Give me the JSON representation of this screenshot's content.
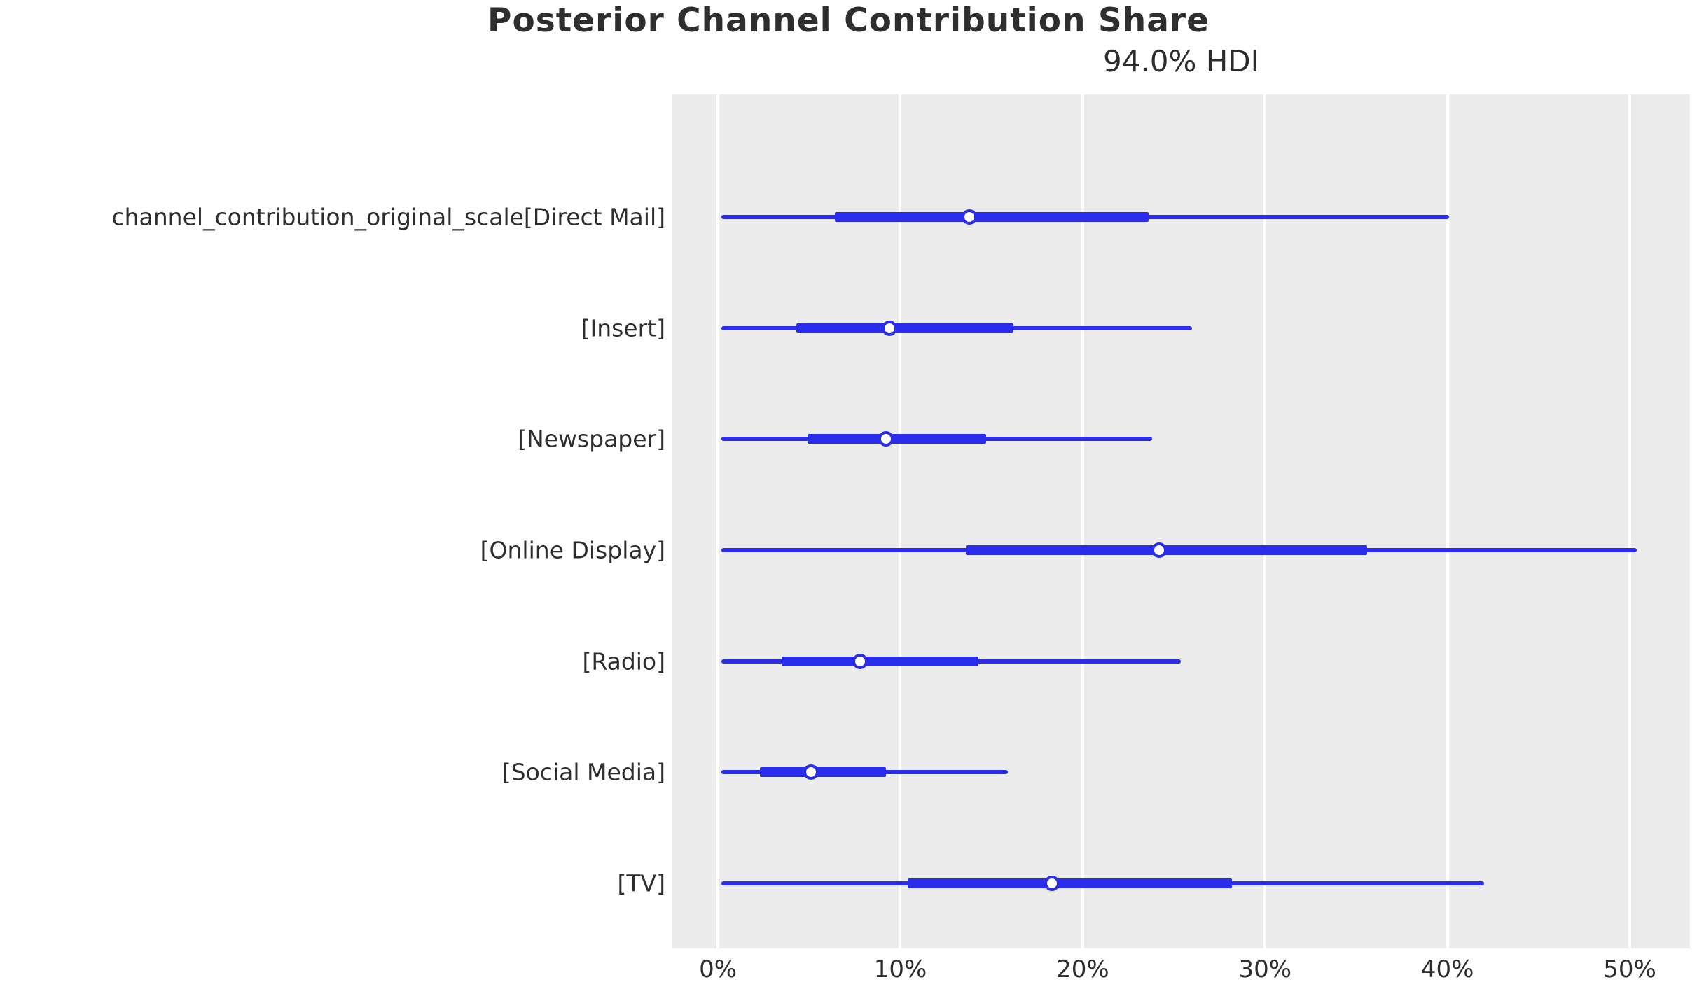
{
  "figure": {
    "title": "Posterior Channel Contribution Share",
    "subtitle": "94.0% HDI"
  },
  "chart_data": {
    "type": "forest",
    "title": "Posterior Channel Contribution Share",
    "subtitle": "94.0% HDI",
    "interval_description": "94.0% highest density interval with interquartile range (thick band) and median marker (circle)",
    "x_unit": "percent",
    "x_min": -2.5,
    "x_max": 53.3,
    "x_ticks": [
      0,
      10,
      20,
      30,
      40,
      50
    ],
    "x_tick_labels": [
      "0%",
      "10%",
      "20%",
      "30%",
      "40%",
      "50%"
    ],
    "grid": true,
    "legend": false,
    "rows": [
      {
        "label": "channel_contribution_original_scale[Direct Mail]",
        "hdi_low": 0.2,
        "hdi_high": 40.1,
        "quartile_low": 6.4,
        "quartile_high": 23.6,
        "median": 13.8
      },
      {
        "label": "[Insert]",
        "hdi_low": 0.2,
        "hdi_high": 26.0,
        "quartile_low": 4.3,
        "quartile_high": 16.2,
        "median": 9.4
      },
      {
        "label": "[Newspaper]",
        "hdi_low": 0.2,
        "hdi_high": 23.8,
        "quartile_low": 4.9,
        "quartile_high": 14.7,
        "median": 9.2
      },
      {
        "label": "[Online Display]",
        "hdi_low": 0.2,
        "hdi_high": 50.4,
        "quartile_low": 13.6,
        "quartile_high": 35.6,
        "median": 24.2
      },
      {
        "label": "[Radio]",
        "hdi_low": 0.2,
        "hdi_high": 25.4,
        "quartile_low": 3.5,
        "quartile_high": 14.3,
        "median": 7.8
      },
      {
        "label": "[Social Media]",
        "hdi_low": 0.2,
        "hdi_high": 15.9,
        "quartile_low": 2.3,
        "quartile_high": 9.2,
        "median": 5.1
      },
      {
        "label": "[TV]",
        "hdi_low": 0.2,
        "hdi_high": 42.0,
        "quartile_low": 10.4,
        "quartile_high": 28.2,
        "median": 18.3
      }
    ],
    "colors": {
      "interval": "#2a2eec",
      "plot_background": "#ececec",
      "gridline": "#ffffff",
      "text": "#2d2d2d"
    }
  }
}
